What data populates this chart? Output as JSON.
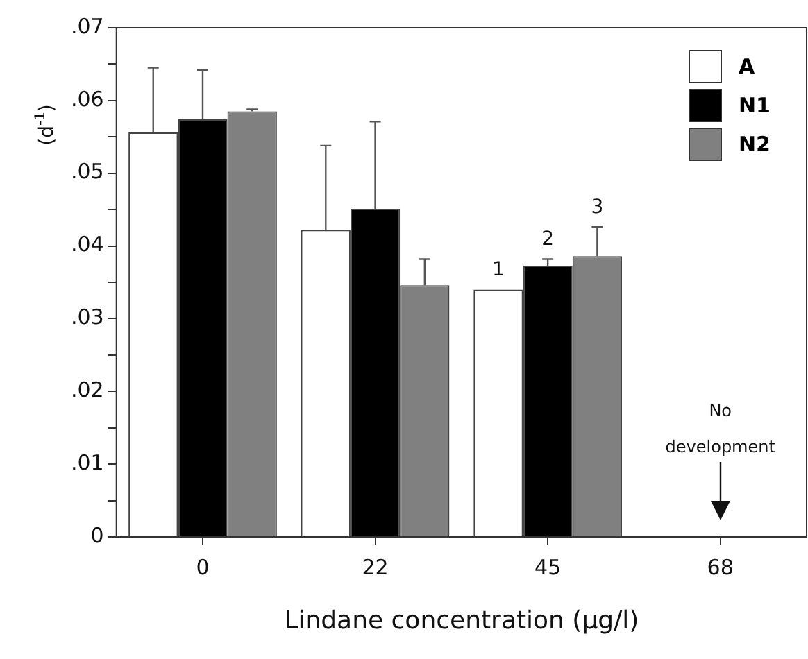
{
  "chart_data": {
    "type": "bar",
    "xlabel": "Lindane concentration (μg/l)",
    "ylabel": "(d$^{-1}$)",
    "categories": [
      "0",
      "22",
      "45",
      "68"
    ],
    "series": [
      {
        "name": "A",
        "color": "#ffffff",
        "values": [
          0.0556,
          0.0422,
          0.034,
          null
        ],
        "errors": [
          [
            0.0556,
            0.0645
          ],
          [
            0.0422,
            0.0538
          ],
          null,
          null
        ]
      },
      {
        "name": "N1",
        "color": "#000000",
        "values": [
          0.0574,
          0.0451,
          0.0373,
          null
        ],
        "errors": [
          [
            0.0574,
            0.0642
          ],
          [
            0.0451,
            0.0571
          ],
          [
            0.0373,
            0.0382
          ],
          null
        ]
      },
      {
        "name": "N2",
        "color": "#808080",
        "values": [
          0.0585,
          0.0346,
          0.0386,
          null
        ],
        "errors": [
          [
            0.0585,
            0.0588
          ],
          [
            0.0346,
            0.0382
          ],
          [
            0.0386,
            0.0426
          ],
          null
        ]
      }
    ],
    "ylim": [
      0,
      0.07
    ],
    "yticks": [
      {
        "value": 0,
        "label": "0"
      },
      {
        "value": 0.005,
        "label": null
      },
      {
        "value": 0.01,
        "label": ".01"
      },
      {
        "value": 0.015,
        "label": null
      },
      {
        "value": 0.02,
        "label": ".02"
      },
      {
        "value": 0.025,
        "label": null
      },
      {
        "value": 0.03,
        "label": ".03"
      },
      {
        "value": 0.035,
        "label": null
      },
      {
        "value": 0.04,
        "label": ".04"
      },
      {
        "value": 0.045,
        "label": null
      },
      {
        "value": 0.05,
        "label": ".05"
      },
      {
        "value": 0.055,
        "label": null
      },
      {
        "value": 0.06,
        "label": ".06"
      },
      {
        "value": 0.065,
        "label": null
      },
      {
        "value": 0.07,
        "label": ".07"
      }
    ],
    "annotations": [
      "1",
      "2",
      "3",
      "No development"
    ],
    "grid": false,
    "legend": "top right"
  }
}
